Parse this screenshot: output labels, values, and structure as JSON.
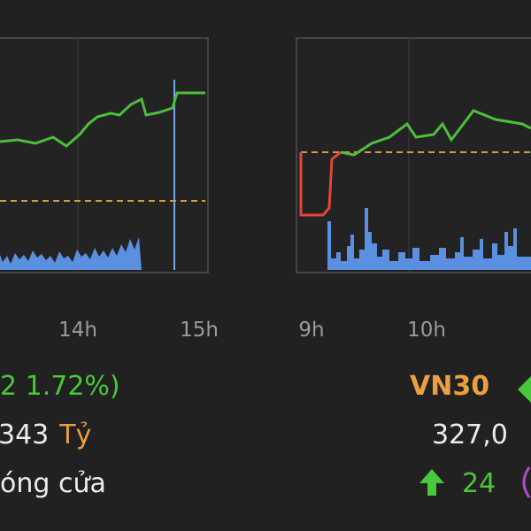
{
  "left_panel": {
    "x_labels": [
      "14h",
      "15h"
    ],
    "change": "2 1.72%)",
    "value": "343",
    "unit": "Tỷ",
    "status": "óng cửa"
  },
  "right_panel": {
    "x_labels": [
      "9h",
      "10h"
    ],
    "index_name": "VN30",
    "value": "327,0",
    "advances": "24"
  }
}
